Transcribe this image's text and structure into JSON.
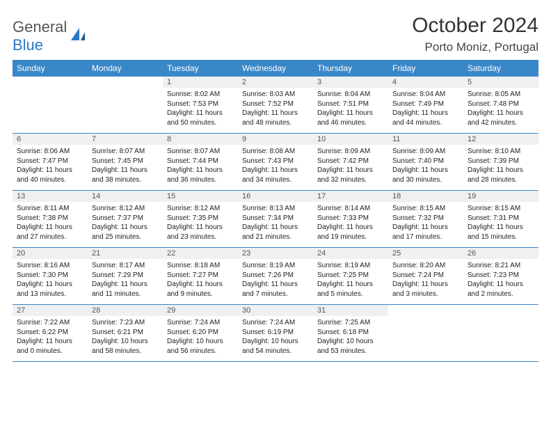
{
  "logo": {
    "text1": "General",
    "text2": "Blue"
  },
  "title": "October 2024",
  "location": "Porto Moniz, Portugal",
  "colors": {
    "header_bg": "#3a87c8",
    "header_fg": "#ffffff",
    "daynum_bg": "#eef0f2",
    "row_border": "#3a87c8",
    "logo_blue": "#2b7ac7"
  },
  "weekdays": [
    "Sunday",
    "Monday",
    "Tuesday",
    "Wednesday",
    "Thursday",
    "Friday",
    "Saturday"
  ],
  "weeks": [
    {
      "nums": [
        "",
        "",
        "1",
        "2",
        "3",
        "4",
        "5"
      ],
      "cells": [
        "",
        "",
        "Sunrise: 8:02 AM\nSunset: 7:53 PM\nDaylight: 11 hours and 50 minutes.",
        "Sunrise: 8:03 AM\nSunset: 7:52 PM\nDaylight: 11 hours and 48 minutes.",
        "Sunrise: 8:04 AM\nSunset: 7:51 PM\nDaylight: 11 hours and 46 minutes.",
        "Sunrise: 8:04 AM\nSunset: 7:49 PM\nDaylight: 11 hours and 44 minutes.",
        "Sunrise: 8:05 AM\nSunset: 7:48 PM\nDaylight: 11 hours and 42 minutes."
      ]
    },
    {
      "nums": [
        "6",
        "7",
        "8",
        "9",
        "10",
        "11",
        "12"
      ],
      "cells": [
        "Sunrise: 8:06 AM\nSunset: 7:47 PM\nDaylight: 11 hours and 40 minutes.",
        "Sunrise: 8:07 AM\nSunset: 7:45 PM\nDaylight: 11 hours and 38 minutes.",
        "Sunrise: 8:07 AM\nSunset: 7:44 PM\nDaylight: 11 hours and 36 minutes.",
        "Sunrise: 8:08 AM\nSunset: 7:43 PM\nDaylight: 11 hours and 34 minutes.",
        "Sunrise: 8:09 AM\nSunset: 7:42 PM\nDaylight: 11 hours and 32 minutes.",
        "Sunrise: 8:09 AM\nSunset: 7:40 PM\nDaylight: 11 hours and 30 minutes.",
        "Sunrise: 8:10 AM\nSunset: 7:39 PM\nDaylight: 11 hours and 28 minutes."
      ]
    },
    {
      "nums": [
        "13",
        "14",
        "15",
        "16",
        "17",
        "18",
        "19"
      ],
      "cells": [
        "Sunrise: 8:11 AM\nSunset: 7:38 PM\nDaylight: 11 hours and 27 minutes.",
        "Sunrise: 8:12 AM\nSunset: 7:37 PM\nDaylight: 11 hours and 25 minutes.",
        "Sunrise: 8:12 AM\nSunset: 7:35 PM\nDaylight: 11 hours and 23 minutes.",
        "Sunrise: 8:13 AM\nSunset: 7:34 PM\nDaylight: 11 hours and 21 minutes.",
        "Sunrise: 8:14 AM\nSunset: 7:33 PM\nDaylight: 11 hours and 19 minutes.",
        "Sunrise: 8:15 AM\nSunset: 7:32 PM\nDaylight: 11 hours and 17 minutes.",
        "Sunrise: 8:15 AM\nSunset: 7:31 PM\nDaylight: 11 hours and 15 minutes."
      ]
    },
    {
      "nums": [
        "20",
        "21",
        "22",
        "23",
        "24",
        "25",
        "26"
      ],
      "cells": [
        "Sunrise: 8:16 AM\nSunset: 7:30 PM\nDaylight: 11 hours and 13 minutes.",
        "Sunrise: 8:17 AM\nSunset: 7:29 PM\nDaylight: 11 hours and 11 minutes.",
        "Sunrise: 8:18 AM\nSunset: 7:27 PM\nDaylight: 11 hours and 9 minutes.",
        "Sunrise: 8:19 AM\nSunset: 7:26 PM\nDaylight: 11 hours and 7 minutes.",
        "Sunrise: 8:19 AM\nSunset: 7:25 PM\nDaylight: 11 hours and 5 minutes.",
        "Sunrise: 8:20 AM\nSunset: 7:24 PM\nDaylight: 11 hours and 3 minutes.",
        "Sunrise: 8:21 AM\nSunset: 7:23 PM\nDaylight: 11 hours and 2 minutes."
      ]
    },
    {
      "nums": [
        "27",
        "28",
        "29",
        "30",
        "31",
        "",
        ""
      ],
      "cells": [
        "Sunrise: 7:22 AM\nSunset: 6:22 PM\nDaylight: 11 hours and 0 minutes.",
        "Sunrise: 7:23 AM\nSunset: 6:21 PM\nDaylight: 10 hours and 58 minutes.",
        "Sunrise: 7:24 AM\nSunset: 6:20 PM\nDaylight: 10 hours and 56 minutes.",
        "Sunrise: 7:24 AM\nSunset: 6:19 PM\nDaylight: 10 hours and 54 minutes.",
        "Sunrise: 7:25 AM\nSunset: 6:18 PM\nDaylight: 10 hours and 53 minutes.",
        "",
        ""
      ]
    }
  ]
}
